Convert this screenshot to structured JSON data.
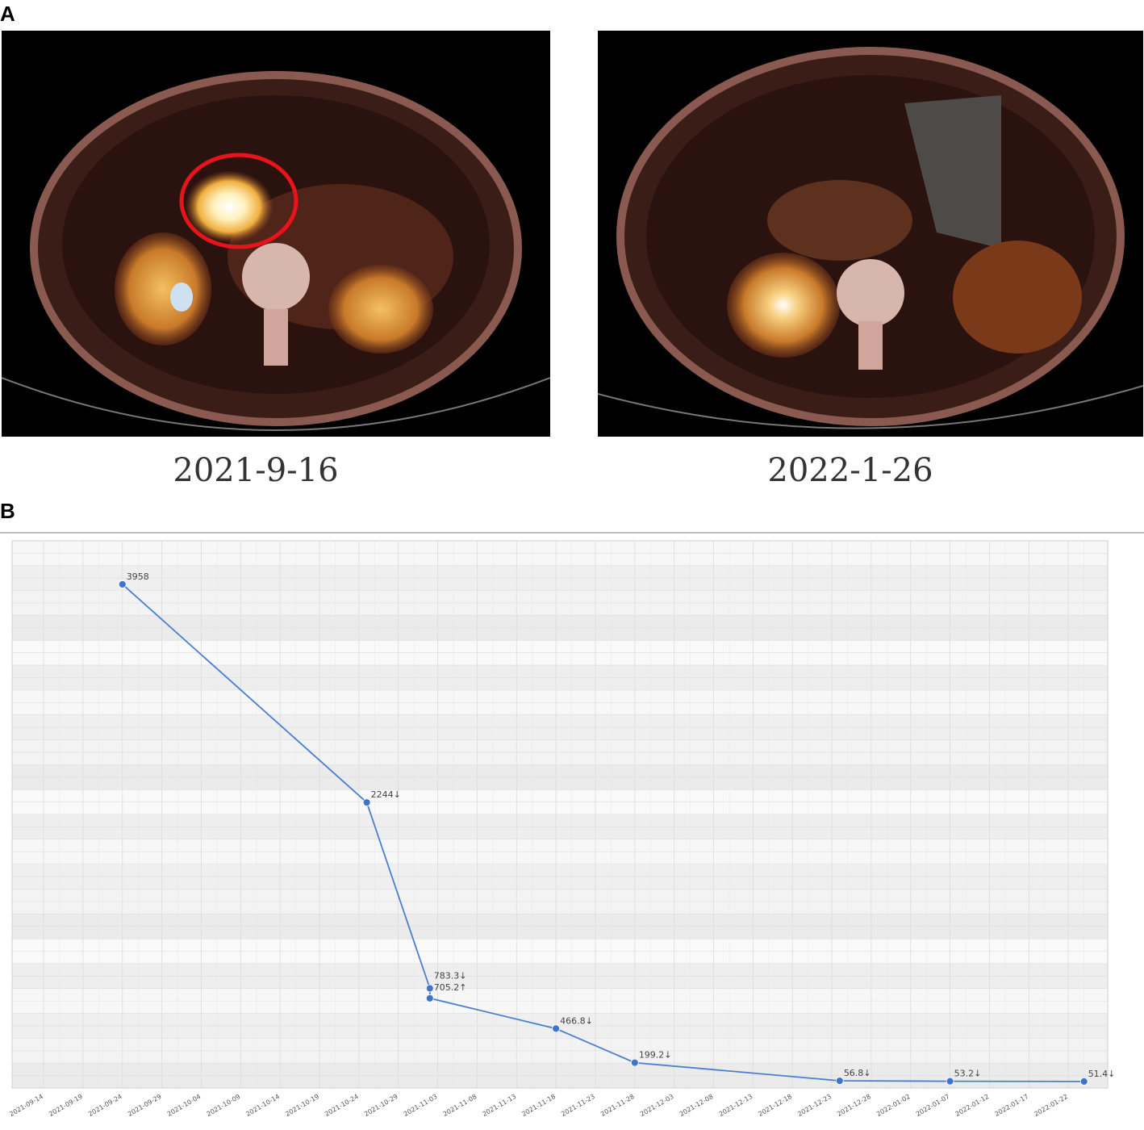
{
  "panels": {
    "a_label": "A",
    "b_label": "B"
  },
  "scans": [
    {
      "date": "2021-9-16",
      "highlight": "red-circle"
    },
    {
      "date": "2022-1-26"
    }
  ],
  "colors": {
    "line": "#4a7fd0",
    "marker": "#3f74cc",
    "circle": "#e8141b",
    "grid": "#dcdcdc"
  },
  "chart_data": {
    "type": "line",
    "title": "",
    "xlabel": "",
    "ylabel": "",
    "x_ticks": [
      "2021-09-14",
      "2021-09-19",
      "2021-09-24",
      "2021-09-29",
      "2021-10-04",
      "2021-10-09",
      "2021-10-14",
      "2021-10-19",
      "2021-10-24",
      "2021-10-29",
      "2021-11-03",
      "2021-11-08",
      "2021-11-13",
      "2021-11-18",
      "2021-11-23",
      "2021-11-28",
      "2021-12-03",
      "2021-12-08",
      "2021-12-13",
      "2021-12-18",
      "2021-12-23",
      "2021-12-28",
      "2022-01-02",
      "2022-01-07",
      "2022-01-12",
      "2022-01-17",
      "2022-01-22"
    ],
    "xlim": [
      "2021-09-10",
      "2022-01-27"
    ],
    "ylim": [
      0,
      4300
    ],
    "grid": true,
    "points": [
      {
        "x": "2021-09-24",
        "y": 3958,
        "label": "3958"
      },
      {
        "x": "2021-10-25",
        "y": 2244,
        "label": "2244↓"
      },
      {
        "x": "2021-11-02",
        "y": 783.3,
        "label": "783.3↓"
      },
      {
        "x": "2021-11-02",
        "y": 705.2,
        "label": "705.2↑"
      },
      {
        "x": "2021-11-18",
        "y": 466.8,
        "label": "466.8↓"
      },
      {
        "x": "2021-11-28",
        "y": 199.2,
        "label": "199.2↓"
      },
      {
        "x": "2021-12-24",
        "y": 56.8,
        "label": "56.8↓"
      },
      {
        "x": "2022-01-07",
        "y": 53.2,
        "label": "53.2↓"
      },
      {
        "x": "2022-01-24",
        "y": 51.4,
        "label": "51.4↓"
      }
    ]
  }
}
